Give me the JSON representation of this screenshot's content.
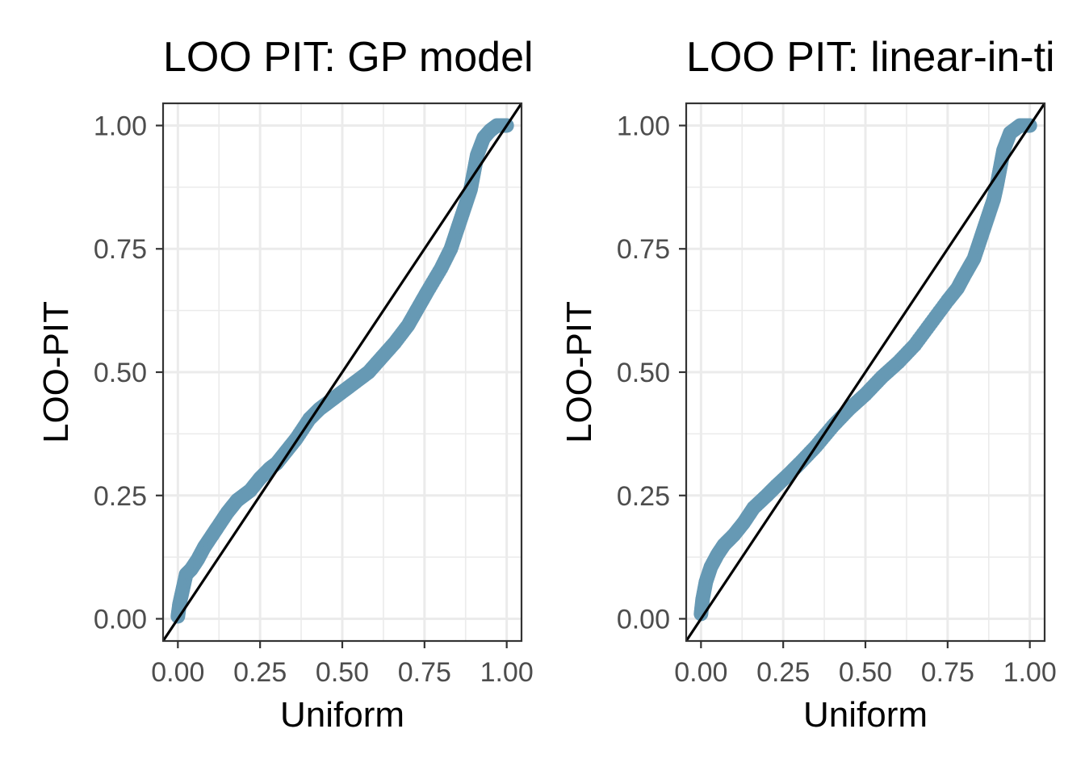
{
  "chart_data": [
    {
      "type": "scatter",
      "title": "LOO PIT: GP model",
      "xlabel": "Uniform",
      "ylabel": "LOO-PIT",
      "xlim": [
        -0.045,
        1.045
      ],
      "ylim": [
        -0.045,
        1.045
      ],
      "xticks": [
        "0.00",
        "0.25",
        "0.50",
        "0.75",
        "1.00"
      ],
      "yticks": [
        "0.00",
        "0.25",
        "0.50",
        "0.75",
        "1.00"
      ],
      "grid": true,
      "reference_line": {
        "from": [
          0,
          0
        ],
        "to": [
          1,
          1
        ]
      },
      "series": [
        {
          "points": [
            [
              0.0,
              0.005
            ],
            [
              0.005,
              0.03
            ],
            [
              0.015,
              0.06
            ],
            [
              0.025,
              0.09
            ],
            [
              0.04,
              0.1
            ],
            [
              0.06,
              0.12
            ],
            [
              0.08,
              0.145
            ],
            [
              0.1,
              0.165
            ],
            [
              0.12,
              0.185
            ],
            [
              0.15,
              0.215
            ],
            [
              0.18,
              0.24
            ],
            [
              0.2,
              0.25
            ],
            [
              0.22,
              0.26
            ],
            [
              0.25,
              0.285
            ],
            [
              0.28,
              0.305
            ],
            [
              0.3,
              0.315
            ],
            [
              0.33,
              0.34
            ],
            [
              0.36,
              0.365
            ],
            [
              0.4,
              0.405
            ],
            [
              0.43,
              0.425
            ],
            [
              0.46,
              0.44
            ],
            [
              0.5,
              0.46
            ],
            [
              0.54,
              0.48
            ],
            [
              0.58,
              0.5
            ],
            [
              0.62,
              0.53
            ],
            [
              0.66,
              0.56
            ],
            [
              0.7,
              0.595
            ],
            [
              0.73,
              0.63
            ],
            [
              0.76,
              0.665
            ],
            [
              0.8,
              0.71
            ],
            [
              0.83,
              0.75
            ],
            [
              0.85,
              0.79
            ],
            [
              0.87,
              0.83
            ],
            [
              0.89,
              0.87
            ],
            [
              0.9,
              0.905
            ],
            [
              0.91,
              0.94
            ],
            [
              0.93,
              0.975
            ],
            [
              0.95,
              0.99
            ],
            [
              0.97,
              1.0
            ],
            [
              1.0,
              1.0
            ]
          ]
        }
      ]
    },
    {
      "type": "scatter",
      "title": "LOO PIT: linear-in-ti",
      "xlabel": "Uniform",
      "ylabel": "LOO-PIT",
      "xlim": [
        -0.045,
        1.045
      ],
      "ylim": [
        -0.045,
        1.045
      ],
      "xticks": [
        "0.00",
        "0.25",
        "0.50",
        "0.75",
        "1.00"
      ],
      "yticks": [
        "0.00",
        "0.25",
        "0.50",
        "0.75",
        "1.00"
      ],
      "grid": true,
      "reference_line": {
        "from": [
          0,
          0
        ],
        "to": [
          1,
          1
        ]
      },
      "series": [
        {
          "points": [
            [
              0.0,
              0.01
            ],
            [
              0.005,
              0.04
            ],
            [
              0.015,
              0.075
            ],
            [
              0.03,
              0.105
            ],
            [
              0.05,
              0.13
            ],
            [
              0.07,
              0.15
            ],
            [
              0.1,
              0.17
            ],
            [
              0.13,
              0.195
            ],
            [
              0.16,
              0.225
            ],
            [
              0.2,
              0.25
            ],
            [
              0.23,
              0.27
            ],
            [
              0.27,
              0.295
            ],
            [
              0.3,
              0.315
            ],
            [
              0.35,
              0.35
            ],
            [
              0.4,
              0.39
            ],
            [
              0.45,
              0.425
            ],
            [
              0.5,
              0.455
            ],
            [
              0.55,
              0.49
            ],
            [
              0.6,
              0.52
            ],
            [
              0.65,
              0.555
            ],
            [
              0.7,
              0.6
            ],
            [
              0.75,
              0.645
            ],
            [
              0.78,
              0.67
            ],
            [
              0.8,
              0.695
            ],
            [
              0.83,
              0.73
            ],
            [
              0.85,
              0.77
            ],
            [
              0.87,
              0.81
            ],
            [
              0.89,
              0.85
            ],
            [
              0.9,
              0.88
            ],
            [
              0.91,
              0.915
            ],
            [
              0.92,
              0.95
            ],
            [
              0.94,
              0.985
            ],
            [
              0.97,
              1.0
            ],
            [
              1.0,
              1.0
            ]
          ]
        }
      ]
    }
  ],
  "colors": {
    "points": "#6699b4",
    "reference_line": "#000000",
    "grid": "#ebebeb",
    "panel_border": "#333333",
    "tick_label": "#4d4d4d"
  }
}
